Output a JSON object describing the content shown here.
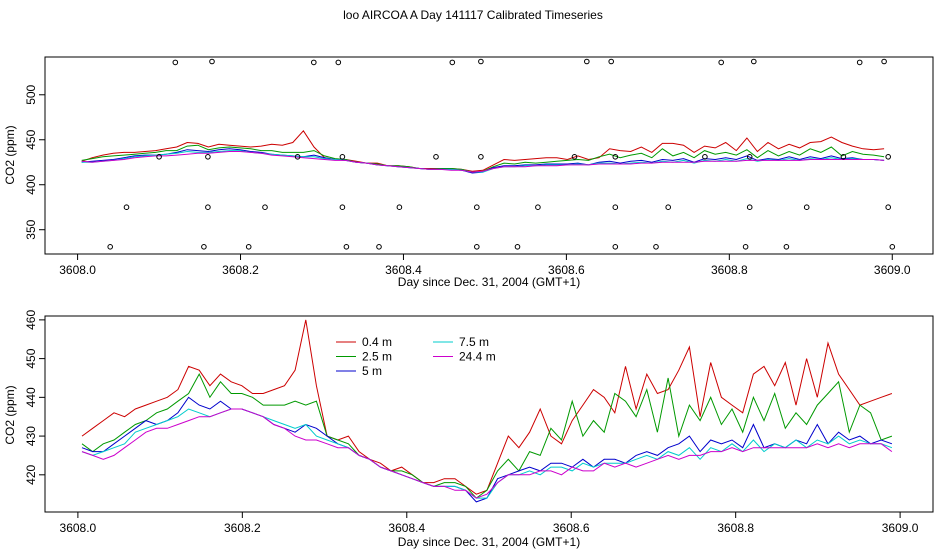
{
  "title": "loo AIRCOA A  Day 141117  Calibrated Timeseries",
  "chart_data": [
    {
      "type": "line",
      "xlabel": "Day since Dec. 31, 2004 (GMT+1)",
      "ylabel": "CO2 (ppm)",
      "xlim": [
        3607.96,
        3609.05
      ],
      "ylim": [
        323,
        542
      ],
      "x_ticks": [
        "3608.0",
        "3608.2",
        "3608.4",
        "3608.6",
        "3608.8",
        "3609.0"
      ],
      "y_ticks": [
        "350",
        "400",
        "450",
        "500"
      ],
      "series": [
        {
          "color": "#cc0000",
          "values": [
            426,
            430,
            433,
            435,
            436,
            436,
            437,
            438,
            440,
            442,
            447,
            446,
            442,
            445,
            444,
            443,
            442,
            443,
            445,
            444,
            447,
            460,
            442,
            430,
            428,
            428,
            426,
            424,
            424,
            421,
            421,
            420,
            418,
            418,
            418,
            418,
            417,
            415,
            416,
            422,
            428,
            427,
            428,
            429,
            430,
            430,
            428,
            432,
            428,
            430,
            440,
            438,
            437,
            442,
            436,
            446,
            446,
            444,
            436,
            443,
            441,
            447,
            438,
            452,
            437,
            447,
            440,
            445,
            441,
            447,
            448,
            453,
            447,
            443,
            440,
            439,
            440
          ]
        },
        {
          "color": "#009900",
          "values": [
            427,
            429,
            431,
            432,
            433,
            434,
            435,
            436,
            438,
            438,
            443,
            444,
            439,
            441,
            442,
            441,
            440,
            438,
            438,
            436,
            436,
            436,
            438,
            432,
            429,
            428,
            425,
            424,
            423,
            421,
            421,
            420,
            418,
            417,
            418,
            418,
            417,
            414,
            415,
            420,
            424,
            423,
            425,
            424,
            425,
            426,
            427,
            428,
            427,
            431,
            434,
            430,
            433,
            435,
            430,
            440,
            432,
            436,
            430,
            438,
            434,
            436,
            433,
            439,
            430,
            438,
            432,
            437,
            433,
            440,
            436,
            442,
            432,
            437,
            434,
            433,
            431
          ]
        },
        {
          "color": "#0000cc",
          "values": [
            425,
            426,
            427,
            428,
            430,
            432,
            433,
            433,
            434,
            436,
            439,
            438,
            437,
            439,
            440,
            439,
            437,
            436,
            434,
            433,
            432,
            431,
            433,
            430,
            428,
            427,
            425,
            424,
            422,
            421,
            420,
            419,
            418,
            417,
            417,
            417,
            416,
            413,
            414,
            419,
            421,
            421,
            422,
            422,
            423,
            423,
            423,
            424,
            422,
            425,
            426,
            424,
            426,
            427,
            425,
            428,
            427,
            429,
            425,
            429,
            428,
            430,
            428,
            432,
            427,
            429,
            428,
            431,
            428,
            431,
            429,
            432,
            429,
            430,
            428,
            428,
            427
          ]
        },
        {
          "color": "#00cccc",
          "values": [
            425,
            425,
            426,
            427,
            429,
            431,
            432,
            433,
            434,
            435,
            437,
            436,
            436,
            437,
            438,
            438,
            436,
            435,
            434,
            433,
            432,
            431,
            431,
            429,
            428,
            427,
            425,
            424,
            422,
            421,
            420,
            419,
            418,
            417,
            417,
            417,
            416,
            414,
            414,
            418,
            420,
            420,
            421,
            421,
            422,
            422,
            422,
            423,
            422,
            424,
            424,
            423,
            424,
            425,
            424,
            426,
            425,
            427,
            424,
            427,
            426,
            428,
            426,
            429,
            426,
            428,
            427,
            429,
            427,
            429,
            428,
            430,
            428,
            429,
            428,
            428,
            427
          ]
        },
        {
          "color": "#cc00cc",
          "values": [
            426,
            425,
            426,
            427,
            428,
            430,
            431,
            432,
            432,
            433,
            434,
            435,
            435,
            436,
            437,
            437,
            436,
            435,
            433,
            432,
            431,
            430,
            429,
            428,
            427,
            427,
            425,
            424,
            422,
            421,
            420,
            419,
            418,
            417,
            417,
            416,
            416,
            414,
            415,
            418,
            420,
            420,
            420,
            421,
            421,
            421,
            422,
            422,
            422,
            423,
            423,
            423,
            423,
            424,
            424,
            425,
            425,
            425,
            425,
            426,
            426,
            426,
            426,
            427,
            427,
            427,
            427,
            427,
            427,
            428,
            428,
            428,
            428,
            428,
            428,
            428,
            427
          ]
        }
      ],
      "markers": [
        [
          3608.04,
          331
        ],
        [
          3608.06,
          375
        ],
        [
          3608.1,
          431
        ],
        [
          3608.12,
          536
        ],
        [
          3608.155,
          331
        ],
        [
          3608.16,
          375
        ],
        [
          3608.16,
          431
        ],
        [
          3608.165,
          537
        ],
        [
          3608.21,
          331
        ],
        [
          3608.23,
          375
        ],
        [
          3608.27,
          431
        ],
        [
          3608.29,
          536
        ],
        [
          3608.32,
          536
        ],
        [
          3608.325,
          375
        ],
        [
          3608.325,
          431
        ],
        [
          3608.33,
          331
        ],
        [
          3608.37,
          331
        ],
        [
          3608.395,
          375
        ],
        [
          3608.44,
          431
        ],
        [
          3608.46,
          536
        ],
        [
          3608.49,
          331
        ],
        [
          3608.49,
          375
        ],
        [
          3608.495,
          431
        ],
        [
          3608.495,
          537
        ],
        [
          3608.54,
          331
        ],
        [
          3608.565,
          375
        ],
        [
          3608.61,
          431
        ],
        [
          3608.625,
          537
        ],
        [
          3608.655,
          537
        ],
        [
          3608.66,
          375
        ],
        [
          3608.66,
          431
        ],
        [
          3608.66,
          331
        ],
        [
          3608.71,
          331
        ],
        [
          3608.725,
          375
        ],
        [
          3608.77,
          431
        ],
        [
          3608.79,
          536
        ],
        [
          3608.82,
          331
        ],
        [
          3608.825,
          375
        ],
        [
          3608.825,
          431
        ],
        [
          3608.83,
          537
        ],
        [
          3608.87,
          331
        ],
        [
          3608.895,
          375
        ],
        [
          3608.94,
          431
        ],
        [
          3608.96,
          536
        ],
        [
          3608.99,
          537
        ],
        [
          3608.995,
          375
        ],
        [
          3608.995,
          431
        ],
        [
          3609.0,
          331
        ]
      ]
    },
    {
      "type": "line",
      "xlabel": "Day since Dec. 31, 2004 (GMT+1)",
      "ylabel": "CO2 (ppm)",
      "xlim": [
        3607.96,
        3609.04
      ],
      "ylim": [
        410.4,
        461
      ],
      "x_ticks": [
        "3608.0",
        "3608.2",
        "3608.4",
        "3608.6",
        "3608.8",
        "3609.0"
      ],
      "y_ticks": [
        "420",
        "430",
        "440",
        "450",
        "460"
      ],
      "legend": [
        {
          "label": "0.4 m",
          "color": "#cc0000"
        },
        {
          "label": "2.5 m",
          "color": "#009900"
        },
        {
          "label": "5 m",
          "color": "#0000cc"
        },
        {
          "label": "7.5 m",
          "color": "#00cccc"
        },
        {
          "label": "24.4 m",
          "color": "#cc00cc"
        }
      ],
      "series": [
        {
          "name": "0.4 m",
          "color": "#cc0000",
          "values": [
            430,
            432,
            434,
            436,
            435,
            437,
            438,
            439,
            440,
            442,
            448,
            447,
            443,
            446,
            444,
            443,
            441,
            441,
            442,
            443,
            447,
            460,
            443,
            430,
            429,
            430,
            426,
            424,
            423,
            421,
            422,
            420,
            418,
            418,
            419,
            419,
            417,
            415,
            416,
            423,
            430,
            427,
            431,
            437,
            430,
            428,
            434,
            438,
            442,
            440,
            436,
            448,
            437,
            446,
            441,
            442,
            447,
            453,
            435,
            449,
            440,
            438,
            436,
            446,
            448,
            443,
            449,
            438,
            450,
            440,
            454,
            446,
            442,
            438,
            439,
            440,
            441
          ]
        },
        {
          "name": "2.5 m",
          "color": "#009900",
          "values": [
            428,
            426,
            428,
            429,
            431,
            433,
            434,
            436,
            437,
            439,
            441,
            446,
            440,
            444,
            441,
            441,
            440,
            438,
            438,
            438,
            439,
            438,
            439,
            430,
            429,
            428,
            425,
            424,
            422,
            421,
            421,
            420,
            418,
            417,
            418,
            418,
            417,
            414,
            416,
            421,
            424,
            421,
            426,
            425,
            432,
            429,
            439,
            430,
            434,
            431,
            441,
            439,
            435,
            442,
            431,
            445,
            430,
            438,
            434,
            440,
            433,
            437,
            431,
            440,
            434,
            441,
            432,
            436,
            433,
            438,
            441,
            444,
            431,
            438,
            436,
            429,
            430
          ]
        },
        {
          "name": "5 m",
          "color": "#0000cc",
          "values": [
            427,
            426,
            426,
            428,
            430,
            432,
            434,
            433,
            434,
            436,
            440,
            438,
            437,
            439,
            437,
            437,
            436,
            435,
            433,
            432,
            431,
            433,
            432,
            430,
            428,
            427,
            425,
            424,
            422,
            421,
            420,
            419,
            418,
            417,
            417,
            417,
            416,
            413,
            414,
            419,
            420,
            421,
            422,
            421,
            423,
            423,
            422,
            424,
            422,
            424,
            424,
            423,
            425,
            426,
            425,
            427,
            428,
            430,
            426,
            429,
            428,
            429,
            427,
            433,
            427,
            428,
            427,
            429,
            428,
            433,
            428,
            431,
            429,
            430,
            428,
            429,
            428
          ]
        },
        {
          "name": "7.5 m",
          "color": "#00cccc",
          "values": [
            426,
            425,
            426,
            427,
            428,
            431,
            432,
            433,
            434,
            435,
            437,
            436,
            435,
            436,
            437,
            437,
            436,
            435,
            434,
            433,
            432,
            433,
            430,
            429,
            428,
            427,
            425,
            424,
            422,
            421,
            420,
            419,
            418,
            417,
            417,
            417,
            416,
            414,
            414,
            418,
            420,
            420,
            421,
            420,
            422,
            422,
            421,
            423,
            422,
            423,
            423,
            423,
            424,
            425,
            424,
            426,
            425,
            427,
            424,
            427,
            426,
            428,
            426,
            429,
            426,
            428,
            427,
            429,
            427,
            429,
            428,
            430,
            428,
            429,
            428,
            428,
            427
          ]
        },
        {
          "name": "24.4 m",
          "color": "#cc00cc",
          "values": [
            426,
            425,
            424,
            425,
            427,
            429,
            431,
            432,
            432,
            433,
            434,
            435,
            435,
            436,
            437,
            437,
            436,
            435,
            433,
            432,
            430,
            429,
            429,
            428,
            427,
            427,
            425,
            424,
            422,
            421,
            420,
            419,
            418,
            417,
            417,
            416,
            416,
            414,
            415,
            418,
            420,
            420,
            420,
            421,
            421,
            420,
            422,
            421,
            421,
            423,
            422,
            423,
            422,
            423,
            424,
            425,
            424,
            425,
            425,
            426,
            426,
            427,
            426,
            427,
            427,
            427,
            427,
            427,
            427,
            428,
            427,
            428,
            427,
            428,
            428,
            428,
            426
          ]
        }
      ]
    }
  ]
}
